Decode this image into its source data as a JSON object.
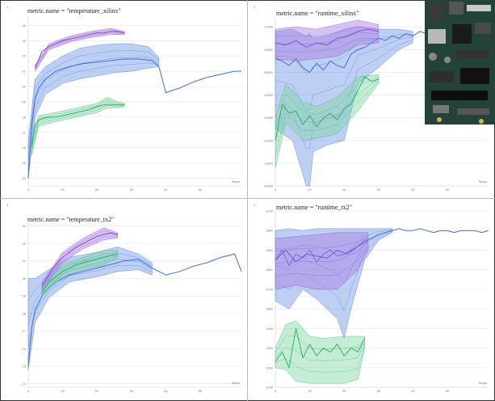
{
  "colors": {
    "blue": "#3b6fd6",
    "blue_fill": "#6f95e6",
    "purple": "#8a4fd0",
    "purple_fill": "#a77be0",
    "green": "#2fb36a",
    "green_fill": "#7fd4a2",
    "grid": "#e4e4e4",
    "axis_text": "#777777"
  },
  "chart_data": [
    {
      "type": "line",
      "title": "metric.name = \"temperature_xilinx\"",
      "panel_mark": "1",
      "xlabel": "Steps",
      "xlim": [
        0,
        62
      ],
      "ylim": [
        23.5,
        34.6
      ],
      "xticks": [
        0,
        10,
        20,
        30,
        40,
        50
      ],
      "yticks": [
        24,
        25,
        26,
        27,
        28,
        29,
        30,
        31,
        32,
        33,
        34
      ],
      "series": [
        {
          "name": "",
          "color": "blue",
          "x": [
            0,
            1,
            2,
            3,
            5,
            8,
            12,
            16,
            20,
            24,
            28,
            32,
            36,
            38,
            40,
            44,
            48,
            52,
            56,
            60,
            62
          ],
          "y": [
            24.0,
            27.5,
            29.2,
            29.9,
            30.5,
            31.0,
            31.3,
            31.5,
            31.6,
            31.7,
            31.8,
            31.8,
            31.7,
            31.3,
            29.6,
            29.9,
            30.3,
            30.6,
            30.8,
            31.0,
            31.0
          ],
          "band": [
            [
              0,
              24.0,
              26.5
            ],
            [
              2,
              28.0,
              30.5
            ],
            [
              5,
              29.5,
              31.3
            ],
            [
              10,
              30.2,
              32.0
            ],
            [
              15,
              30.5,
              32.5
            ],
            [
              20,
              30.7,
              32.7
            ],
            [
              25,
              30.9,
              32.8
            ],
            [
              30,
              31.0,
              32.8
            ],
            [
              35,
              31.2,
              32.6
            ],
            [
              38,
              31.3,
              31.9
            ]
          ]
        },
        {
          "name": "",
          "color": "purple",
          "x": [
            2,
            4,
            6,
            8,
            10,
            12,
            14,
            16,
            18,
            20,
            22,
            24,
            26,
            28
          ],
          "y": [
            31.2,
            32.3,
            32.6,
            32.8,
            33.0,
            33.1,
            33.2,
            33.3,
            33.4,
            33.5,
            33.5,
            33.6,
            33.6,
            33.5
          ],
          "band": [
            [
              2,
              31.0,
              31.4
            ],
            [
              6,
              32.4,
              32.8
            ],
            [
              12,
              32.9,
              33.3
            ],
            [
              18,
              33.2,
              33.6
            ],
            [
              24,
              33.4,
              33.8
            ],
            [
              28,
              33.4,
              33.6
            ]
          ]
        },
        {
          "name": "",
          "color": "green",
          "x": [
            1,
            2,
            3,
            4,
            6,
            8,
            10,
            12,
            14,
            16,
            18,
            20,
            22,
            24,
            26,
            28
          ],
          "y": [
            26.0,
            27.5,
            27.8,
            27.9,
            28.0,
            28.0,
            28.1,
            28.2,
            28.3,
            28.4,
            28.5,
            28.7,
            28.8,
            28.8,
            28.8,
            28.8
          ],
          "band": [
            [
              1,
              25.5,
              26.5
            ],
            [
              3,
              27.4,
              28.1
            ],
            [
              8,
              27.7,
              28.3
            ],
            [
              14,
              28.0,
              28.6
            ],
            [
              20,
              28.3,
              28.9
            ],
            [
              23,
              28.6,
              29.3
            ],
            [
              26,
              28.6,
              29.0
            ],
            [
              28,
              28.7,
              28.9
            ]
          ]
        }
      ]
    },
    {
      "type": "line",
      "title": "metric.name = \"runtime_xilinx\"",
      "panel_mark": "2",
      "xlabel": "Steps",
      "xlim": [
        0,
        62
      ],
      "ylim": [
        10000,
        17400
      ],
      "xticks": [
        0,
        10,
        20,
        30,
        40,
        50
      ],
      "yticks": [
        10000,
        11000,
        12000,
        13000,
        14000,
        15000,
        16000,
        17000
      ],
      "series": [
        {
          "name": "",
          "color": "blue",
          "x": [
            0,
            2,
            4,
            6,
            8,
            10,
            12,
            14,
            16,
            18,
            20,
            22,
            24,
            26,
            28,
            30,
            32,
            34,
            36,
            38,
            40,
            42,
            44,
            46,
            48,
            50,
            52,
            54,
            56,
            58,
            60,
            62
          ],
          "y": [
            15600,
            15500,
            15300,
            15600,
            15200,
            15000,
            15400,
            15100,
            15500,
            15300,
            15200,
            15800,
            16000,
            16100,
            16300,
            16500,
            16400,
            16600,
            16500,
            16700,
            16600,
            16800,
            16700,
            16900,
            16800,
            16600,
            16900,
            16500,
            16800,
            16600,
            16700,
            16600
          ],
          "band": [
            [
              0,
              12500,
              16800
            ],
            [
              5,
              12000,
              16900
            ],
            [
              9,
              10000,
              16600
            ],
            [
              10,
              10000,
              16700
            ],
            [
              11,
              11500,
              16500
            ],
            [
              15,
              11800,
              16600
            ],
            [
              20,
              12000,
              16900
            ],
            [
              24,
              14500,
              17000
            ],
            [
              30,
              15200,
              16900
            ],
            [
              36,
              16000,
              16900
            ],
            [
              40,
              16300,
              16800
            ]
          ]
        },
        {
          "name": "",
          "color": "purple",
          "x": [
            0,
            3,
            6,
            9,
            12,
            15,
            18,
            21,
            24,
            27,
            30
          ],
          "y": [
            16300,
            16200,
            16400,
            16100,
            16300,
            16200,
            16500,
            16600,
            16800,
            16900,
            16800
          ],
          "band": [
            [
              0,
              15600,
              16900
            ],
            [
              6,
              15500,
              17000
            ],
            [
              12,
              15600,
              16900
            ],
            [
              18,
              15700,
              17100
            ],
            [
              24,
              16200,
              17300
            ],
            [
              30,
              16300,
              17100
            ]
          ]
        },
        {
          "name": "",
          "color": "green",
          "x": [
            0,
            2,
            4,
            6,
            8,
            10,
            12,
            14,
            16,
            18,
            20,
            22,
            24,
            26,
            28,
            30
          ],
          "y": [
            12000,
            13600,
            13200,
            13300,
            12700,
            13100,
            12600,
            13000,
            13200,
            12900,
            13400,
            13600,
            14200,
            14800,
            14600,
            14700
          ],
          "band": [
            [
              0,
              10800,
              13000
            ],
            [
              3,
              12800,
              14500
            ],
            [
              8,
              12000,
              13700
            ],
            [
              12,
              12100,
              13500
            ],
            [
              18,
              12300,
              13900
            ],
            [
              24,
              13300,
              14800
            ],
            [
              30,
              14500,
              14900
            ]
          ]
        }
      ]
    },
    {
      "type": "line",
      "title": "metric.name = \"temperature_tx2\"",
      "panel_mark": "3",
      "xlabel": "Steps",
      "xlim": [
        0,
        62
      ],
      "ylim": [
        23.8,
        33.2
      ],
      "xticks": [
        0,
        10,
        20,
        30,
        40,
        50
      ],
      "yticks": [
        24,
        25,
        26,
        27,
        28,
        29,
        30,
        31,
        32,
        33
      ],
      "series": [
        {
          "name": "",
          "color": "blue",
          "x": [
            0,
            1,
            2,
            4,
            6,
            8,
            12,
            16,
            20,
            24,
            28,
            32,
            36,
            40,
            44,
            48,
            52,
            56,
            60,
            62
          ],
          "y": [
            25.0,
            27.2,
            28.2,
            29.0,
            29.5,
            29.8,
            30.2,
            30.4,
            30.6,
            30.8,
            31.0,
            31.1,
            30.6,
            30.2,
            30.4,
            30.7,
            30.9,
            31.2,
            31.4,
            30.4
          ],
          "band": [
            [
              0,
              24.8,
              30.0
            ],
            [
              2,
              27.5,
              30.0
            ],
            [
              6,
              28.9,
              30.5
            ],
            [
              12,
              29.8,
              31.2
            ],
            [
              20,
              30.1,
              31.5
            ],
            [
              26,
              30.4,
              31.8
            ],
            [
              32,
              30.5,
              31.4
            ],
            [
              36,
              30.2,
              30.9
            ]
          ]
        },
        {
          "name": "",
          "color": "purple",
          "x": [
            4,
            6,
            8,
            10,
            12,
            14,
            16,
            18,
            20,
            22,
            24,
            26
          ],
          "y": [
            29.5,
            30.2,
            30.8,
            31.2,
            31.5,
            31.8,
            32.0,
            32.2,
            32.4,
            32.5,
            32.6,
            32.5
          ],
          "band": [
            [
              4,
              29.3,
              29.8
            ],
            [
              10,
              30.9,
              31.5
            ],
            [
              16,
              31.7,
              32.3
            ],
            [
              22,
              32.2,
              32.9
            ],
            [
              26,
              32.3,
              32.6
            ]
          ]
        },
        {
          "name": "",
          "color": "green",
          "x": [
            4,
            6,
            8,
            10,
            12,
            14,
            16,
            18,
            20,
            22,
            24,
            26
          ],
          "y": [
            29.2,
            29.8,
            30.1,
            30.4,
            30.6,
            30.8,
            30.9,
            31.0,
            31.1,
            31.2,
            31.3,
            31.4
          ],
          "band": [
            [
              4,
              29.0,
              29.5
            ],
            [
              10,
              30.1,
              30.8
            ],
            [
              16,
              30.5,
              31.2
            ],
            [
              22,
              30.8,
              31.6
            ],
            [
              26,
              31.2,
              31.6
            ]
          ]
        }
      ]
    },
    {
      "type": "line",
      "title": "metric.name = \"runtime_tx2\"",
      "panel_mark": "4",
      "xlabel": "Steps",
      "xlim": [
        0,
        62
      ],
      "ylim": [
        1200,
        2100
      ],
      "xticks": [
        0,
        10,
        20,
        30,
        40,
        50
      ],
      "yticks": [
        1200,
        1300,
        1400,
        1500,
        1600,
        1700,
        1800,
        1900,
        2000,
        2100
      ],
      "series": [
        {
          "name": "",
          "color": "blue",
          "x": [
            0,
            2,
            4,
            6,
            8,
            10,
            12,
            14,
            16,
            18,
            20,
            22,
            24,
            26,
            28,
            30,
            32,
            34,
            36,
            38,
            40,
            42,
            44,
            46,
            48,
            50,
            52,
            54,
            56,
            58,
            60,
            62
          ],
          "y": [
            1850,
            1900,
            1820,
            1880,
            1860,
            1900,
            1840,
            1880,
            1900,
            1870,
            1880,
            1900,
            1920,
            1950,
            1960,
            1980,
            1990,
            2000,
            2010,
            2000,
            2000,
            2010,
            2000,
            1990,
            2000,
            2000,
            1990,
            2000,
            2000,
            2000,
            1990,
            2000
          ],
          "band": [
            [
              0,
              1640,
              2000
            ],
            [
              4,
              1600,
              2010
            ],
            [
              8,
              1700,
              2000
            ],
            [
              12,
              1650,
              2010
            ],
            [
              18,
              1550,
              2010
            ],
            [
              20,
              1450,
              2010
            ],
            [
              22,
              1600,
              2010
            ],
            [
              26,
              1850,
              2010
            ],
            [
              30,
              1950,
              2010
            ],
            [
              34,
              1990,
              2010
            ]
          ]
        },
        {
          "name": "",
          "color": "purple",
          "x": [
            0,
            3,
            6,
            9,
            12,
            15,
            18,
            21,
            24,
            27
          ],
          "y": [
            1850,
            1900,
            1840,
            1880,
            1870,
            1860,
            1900,
            1880,
            1920,
            1950
          ],
          "band": [
            [
              0,
              1700,
              1960
            ],
            [
              6,
              1720,
              1970
            ],
            [
              12,
              1700,
              1980
            ],
            [
              18,
              1700,
              1990
            ],
            [
              24,
              1800,
              1990
            ],
            [
              27,
              1900,
              1990
            ]
          ]
        },
        {
          "name": "",
          "color": "green",
          "x": [
            0,
            2,
            4,
            6,
            8,
            10,
            12,
            14,
            16,
            18,
            20,
            22,
            24,
            26
          ],
          "y": [
            1330,
            1380,
            1300,
            1500,
            1350,
            1420,
            1360,
            1400,
            1380,
            1420,
            1360,
            1400,
            1380,
            1450
          ],
          "band": [
            [
              0,
              1300,
              1400
            ],
            [
              3,
              1290,
              1520
            ],
            [
              6,
              1230,
              1540
            ],
            [
              10,
              1220,
              1460
            ],
            [
              14,
              1220,
              1450
            ],
            [
              20,
              1220,
              1460
            ],
            [
              24,
              1240,
              1460
            ],
            [
              26,
              1400,
              1460
            ]
          ]
        }
      ]
    }
  ]
}
